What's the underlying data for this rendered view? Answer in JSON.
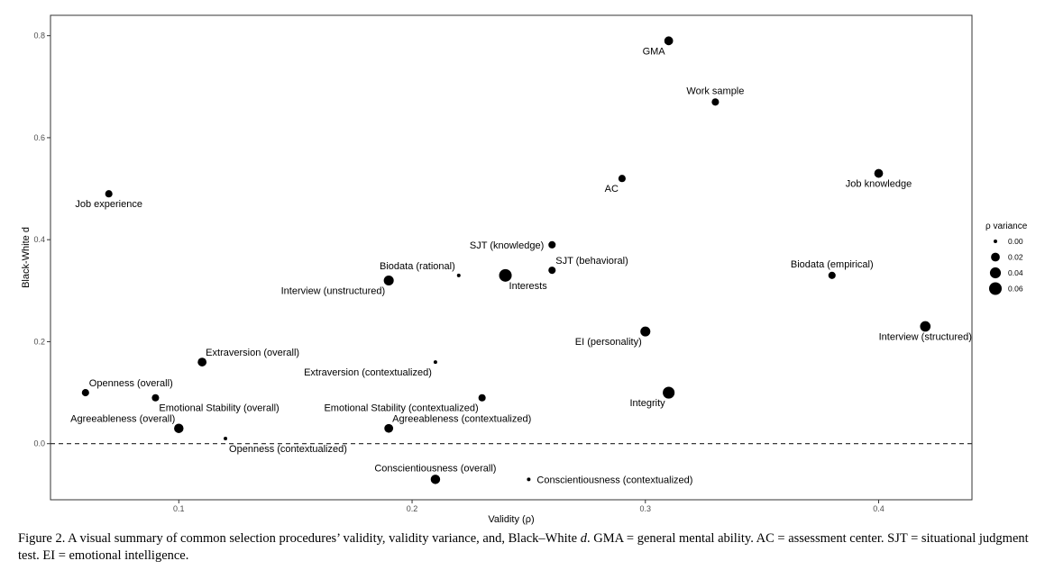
{
  "chart_data": {
    "type": "scatter",
    "xlabel": "Validity (ρ)",
    "ylabel": "Black-White d",
    "xlim": [
      0.045,
      0.44
    ],
    "ylim": [
      -0.11,
      0.84
    ],
    "xticks": [
      "0.1",
      "0.2",
      "0.3",
      "0.4"
    ],
    "xtick_values": [
      0.1,
      0.2,
      0.3,
      0.4
    ],
    "yticks": [
      "0.0",
      "0.2",
      "0.4",
      "0.6",
      "0.8"
    ],
    "ytick_values": [
      0.0,
      0.2,
      0.4,
      0.6,
      0.8
    ],
    "reference_line_y": 0.0,
    "grid": false,
    "legend": {
      "title": "ρ variance",
      "placement": "right",
      "entries": [
        {
          "label": "0.00",
          "value": 0.0
        },
        {
          "label": "0.02",
          "value": 0.02
        },
        {
          "label": "0.04",
          "value": 0.04
        },
        {
          "label": "0.06",
          "value": 0.06
        }
      ]
    },
    "points": [
      {
        "label": "GMA",
        "x": 0.31,
        "y": 0.79,
        "variance": 0.02,
        "label_pos": "below-left"
      },
      {
        "label": "Work sample",
        "x": 0.33,
        "y": 0.67,
        "variance": 0.01,
        "label_pos": "above"
      },
      {
        "label": "Job experience",
        "x": 0.07,
        "y": 0.49,
        "variance": 0.01,
        "label_pos": "below"
      },
      {
        "label": "AC",
        "x": 0.29,
        "y": 0.52,
        "variance": 0.01,
        "label_pos": "below-left"
      },
      {
        "label": "Job knowledge",
        "x": 0.4,
        "y": 0.53,
        "variance": 0.02,
        "label_pos": "below"
      },
      {
        "label": "SJT (knowledge)",
        "x": 0.26,
        "y": 0.39,
        "variance": 0.01,
        "label_pos": "left"
      },
      {
        "label": "SJT (behavioral)",
        "x": 0.26,
        "y": 0.34,
        "variance": 0.01,
        "label_pos": "above-right"
      },
      {
        "label": "Biodata (rational)",
        "x": 0.22,
        "y": 0.33,
        "variance": 0.0,
        "label_pos": "above-left"
      },
      {
        "label": "Interests",
        "x": 0.24,
        "y": 0.33,
        "variance": 0.06,
        "label_pos": "below-right"
      },
      {
        "label": "Interview (unstructured)",
        "x": 0.19,
        "y": 0.32,
        "variance": 0.03,
        "label_pos": "below-left"
      },
      {
        "label": "Biodata (empirical)",
        "x": 0.38,
        "y": 0.33,
        "variance": 0.01,
        "label_pos": "above"
      },
      {
        "label": "EI (personality)",
        "x": 0.3,
        "y": 0.22,
        "variance": 0.03,
        "label_pos": "below-left"
      },
      {
        "label": "Interview (structured)",
        "x": 0.42,
        "y": 0.23,
        "variance": 0.035,
        "label_pos": "below"
      },
      {
        "label": "Extraversion (overall)",
        "x": 0.11,
        "y": 0.16,
        "variance": 0.02,
        "label_pos": "above-right"
      },
      {
        "label": "Extraversion (contextualized)",
        "x": 0.21,
        "y": 0.16,
        "variance": 0.0,
        "label_pos": "below-left"
      },
      {
        "label": "Openness (overall)",
        "x": 0.06,
        "y": 0.1,
        "variance": 0.01,
        "label_pos": "above-right"
      },
      {
        "label": "Integrity",
        "x": 0.31,
        "y": 0.1,
        "variance": 0.05,
        "label_pos": "below-left"
      },
      {
        "label": "Emotional Stability (overall)",
        "x": 0.09,
        "y": 0.09,
        "variance": 0.01,
        "label_pos": "below-right"
      },
      {
        "label": "Emotional Stability (contextualized)",
        "x": 0.23,
        "y": 0.09,
        "variance": 0.01,
        "label_pos": "below-left"
      },
      {
        "label": "Agreeableness (overall)",
        "x": 0.1,
        "y": 0.03,
        "variance": 0.025,
        "label_pos": "above-left"
      },
      {
        "label": "Agreeableness (contextualized)",
        "x": 0.19,
        "y": 0.03,
        "variance": 0.02,
        "label_pos": "above-right"
      },
      {
        "label": "Openness (contextualized)",
        "x": 0.12,
        "y": 0.01,
        "variance": 0.0,
        "label_pos": "below-right"
      },
      {
        "label": "Conscientiousness (overall)",
        "x": 0.21,
        "y": -0.07,
        "variance": 0.025,
        "label_pos": "above"
      },
      {
        "label": "Conscientiousness (contextualized)",
        "x": 0.25,
        "y": -0.07,
        "variance": 0.0,
        "label_pos": "right"
      }
    ]
  },
  "caption": {
    "prefix": "Figure 2. A visual summary of common selection procedures’ validity, validity variance, and, Black–White ",
    "italic": "d",
    "suffix": ". GMA = general mental ability. AC = assessment center. SJT = situational judgment test. EI = emotional intelligence."
  }
}
